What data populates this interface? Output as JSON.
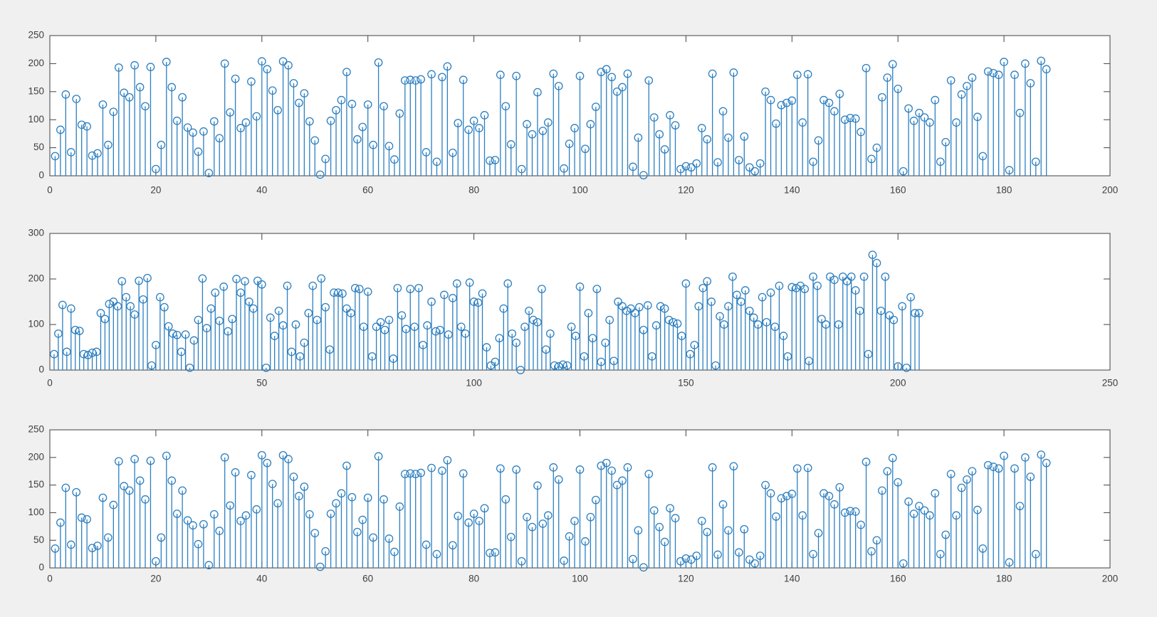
{
  "figure": {
    "background_color": "#f0f0f0",
    "plot_background_color": "#ffffff",
    "axis_color": "#424242",
    "tick_label_color": "#3f3f3f",
    "stem_color": "#2c7fc0",
    "title": "",
    "panel_count": 3
  },
  "chart_data": [
    {
      "type": "stem",
      "panel": "top",
      "title": "",
      "xlabel": "",
      "ylabel": "",
      "xlim": [
        0,
        200
      ],
      "ylim": [
        0,
        250
      ],
      "xticks": [
        0,
        20,
        40,
        60,
        80,
        100,
        120,
        140,
        160,
        180,
        200
      ],
      "yticks": [
        0,
        50,
        100,
        150,
        200,
        250
      ],
      "x_start": 1,
      "marker": "open-circle",
      "grid": false,
      "legend": null,
      "values": [
        35,
        82,
        145,
        42,
        137,
        91,
        88,
        36,
        40,
        127,
        55,
        114,
        193,
        148,
        140,
        197,
        158,
        124,
        194,
        12,
        55,
        203,
        158,
        98,
        140,
        86,
        77,
        43,
        79,
        5,
        97,
        67,
        200,
        113,
        173,
        85,
        95,
        168,
        106,
        204,
        190,
        152,
        117,
        204,
        197,
        165,
        130,
        147,
        97,
        63,
        2,
        30,
        98,
        117,
        135,
        185,
        128,
        65,
        87,
        127,
        55,
        202,
        124,
        53,
        29,
        111,
        170,
        171,
        170,
        172,
        42,
        181,
        25,
        176,
        195,
        41,
        94,
        171,
        82,
        98,
        85,
        108,
        27,
        28,
        180,
        124,
        56,
        178,
        12,
        92,
        74,
        149,
        80,
        95,
        182,
        160,
        13,
        57,
        85,
        178,
        48,
        92,
        123,
        185,
        190,
        176,
        150,
        158,
        182,
        16,
        68,
        1,
        170,
        104,
        74,
        47,
        108,
        90,
        12,
        17,
        15,
        22,
        85,
        65,
        182,
        24,
        115,
        68,
        184,
        28,
        70,
        15,
        8,
        22,
        150,
        135,
        93,
        126,
        130,
        134,
        180,
        95,
        181,
        25,
        63,
        135,
        130,
        115,
        146,
        100,
        103,
        102,
        78,
        192,
        30,
        50,
        140,
        175,
        199,
        155,
        8,
        120,
        98,
        112,
        104,
        95,
        135,
        25,
        60,
        170,
        95,
        145,
        160,
        175,
        105,
        35,
        186,
        183,
        180,
        203,
        10,
        180,
        112,
        200,
        165,
        25,
        205,
        190
      ]
    },
    {
      "type": "stem",
      "panel": "middle",
      "title": "",
      "xlabel": "",
      "ylabel": "",
      "xlim": [
        0,
        250
      ],
      "ylim": [
        0,
        300
      ],
      "xticks": [
        0,
        50,
        100,
        150,
        200,
        250
      ],
      "yticks": [
        0,
        100,
        200,
        300
      ],
      "x_start": 1,
      "marker": "open-circle",
      "grid": false,
      "legend": null,
      "values": [
        35,
        80,
        143,
        40,
        135,
        88,
        86,
        35,
        33,
        38,
        40,
        125,
        112,
        145,
        150,
        140,
        195,
        160,
        140,
        122,
        196,
        155,
        202,
        10,
        55,
        160,
        138,
        96,
        80,
        77,
        40,
        78,
        5,
        65,
        110,
        201,
        92,
        135,
        170,
        108,
        183,
        85,
        112,
        200,
        170,
        195,
        150,
        135,
        196,
        188,
        5,
        115,
        75,
        130,
        98,
        185,
        40,
        100,
        30,
        60,
        125,
        185,
        110,
        201,
        138,
        45,
        170,
        170,
        168,
        135,
        125,
        180,
        178,
        95,
        172,
        30,
        95,
        105,
        88,
        110,
        25,
        180,
        120,
        90,
        178,
        95,
        180,
        55,
        98,
        150,
        85,
        88,
        165,
        78,
        158,
        190,
        95,
        80,
        192,
        150,
        148,
        168,
        50,
        10,
        18,
        70,
        135,
        190,
        80,
        60,
        0,
        95,
        130,
        110,
        105,
        178,
        45,
        80,
        10,
        8,
        12,
        10,
        95,
        75,
        183,
        30,
        125,
        70,
        178,
        18,
        60,
        110,
        20,
        150,
        140,
        130,
        135,
        125,
        138,
        88,
        142,
        30,
        98,
        140,
        135,
        110,
        105,
        102,
        75,
        190,
        35,
        55,
        140,
        180,
        195,
        150,
        10,
        118,
        100,
        140,
        205,
        165,
        150,
        175,
        130,
        115,
        100,
        160,
        105,
        170,
        95,
        185,
        75,
        30,
        182,
        180,
        185,
        178,
        20,
        205,
        185,
        112,
        100,
        205,
        198,
        100,
        205,
        195,
        205,
        175,
        130,
        205,
        35,
        253,
        235,
        130,
        205,
        120,
        110,
        8,
        140,
        5,
        160,
        125,
        125
      ]
    },
    {
      "type": "stem",
      "panel": "bottom",
      "title": "",
      "xlabel": "",
      "ylabel": "",
      "xlim": [
        0,
        200
      ],
      "ylim": [
        0,
        250
      ],
      "xticks": [
        0,
        20,
        40,
        60,
        80,
        100,
        120,
        140,
        160,
        180,
        200
      ],
      "yticks": [
        0,
        50,
        100,
        150,
        200,
        250
      ],
      "x_start": 1,
      "marker": "open-circle",
      "grid": false,
      "legend": null,
      "values": [
        35,
        82,
        145,
        42,
        137,
        91,
        88,
        36,
        40,
        127,
        55,
        114,
        193,
        148,
        140,
        197,
        158,
        124,
        194,
        12,
        55,
        203,
        158,
        98,
        140,
        86,
        77,
        43,
        79,
        5,
        97,
        67,
        200,
        113,
        173,
        85,
        95,
        168,
        106,
        204,
        190,
        152,
        117,
        204,
        197,
        165,
        130,
        147,
        97,
        63,
        2,
        30,
        98,
        117,
        135,
        185,
        128,
        65,
        87,
        127,
        55,
        202,
        124,
        53,
        29,
        111,
        170,
        171,
        170,
        172,
        42,
        181,
        25,
        176,
        195,
        41,
        94,
        171,
        82,
        98,
        85,
        108,
        27,
        28,
        180,
        124,
        56,
        178,
        12,
        92,
        74,
        149,
        80,
        95,
        182,
        160,
        13,
        57,
        85,
        178,
        48,
        92,
        123,
        185,
        190,
        176,
        150,
        158,
        182,
        16,
        68,
        1,
        170,
        104,
        74,
        47,
        108,
        90,
        12,
        17,
        15,
        22,
        85,
        65,
        182,
        24,
        115,
        68,
        184,
        28,
        70,
        15,
        8,
        22,
        150,
        135,
        93,
        126,
        130,
        134,
        180,
        95,
        181,
        25,
        63,
        135,
        130,
        115,
        146,
        100,
        103,
        102,
        78,
        192,
        30,
        50,
        140,
        175,
        199,
        155,
        8,
        120,
        98,
        112,
        104,
        95,
        135,
        25,
        60,
        170,
        95,
        145,
        160,
        175,
        105,
        35,
        186,
        183,
        180,
        203,
        10,
        180,
        112,
        200,
        165,
        25,
        205,
        190
      ]
    }
  ]
}
